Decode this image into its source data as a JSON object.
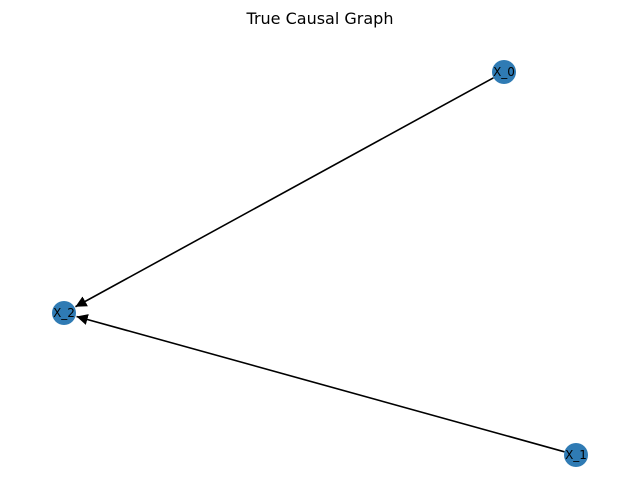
{
  "title": "True Causal Graph",
  "node_color": "#2f7bb4",
  "edge_color": "#000000",
  "nodes": [
    {
      "id": "X_0",
      "label": "X_0"
    },
    {
      "id": "X_1",
      "label": "X_1"
    },
    {
      "id": "X_2",
      "label": "X_2"
    }
  ],
  "edges": [
    {
      "from": "X_0",
      "to": "X_2"
    },
    {
      "from": "X_1",
      "to": "X_2"
    }
  ]
}
